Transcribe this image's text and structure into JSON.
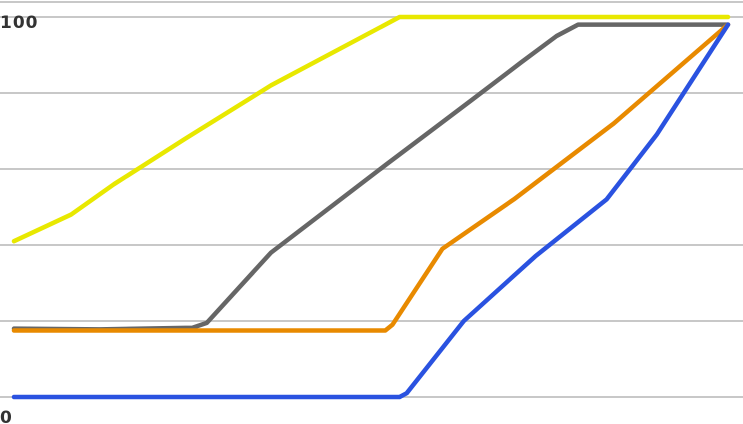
{
  "chart_data": {
    "type": "line",
    "title": "",
    "xlabel": "",
    "ylabel": "",
    "ylim": [
      0,
      100
    ],
    "xlim": [
      0,
      100
    ],
    "y_ticks": [
      0,
      20,
      40,
      60,
      80,
      100
    ],
    "y_tick_labels": [
      {
        "value": 0,
        "label": "0"
      },
      {
        "value": 100,
        "label": "100"
      }
    ],
    "grid": true,
    "legend": "none",
    "series": [
      {
        "color": "#e8e800",
        "x": [
          0,
          8,
          14,
          24,
          36,
          54,
          100
        ],
        "y": [
          41,
          48,
          56,
          68,
          82,
          100,
          100
        ]
      },
      {
        "color": "#666666",
        "x": [
          0,
          12,
          25,
          27,
          36,
          52,
          64,
          71,
          76,
          79,
          100
        ],
        "y": [
          18,
          17.8,
          18.2,
          19.5,
          38,
          61,
          78,
          88,
          95,
          98,
          98
        ]
      },
      {
        "color": "#e88a00",
        "x": [
          0,
          30,
          52,
          53,
          60,
          70,
          84,
          100
        ],
        "y": [
          17.5,
          17.5,
          17.5,
          19,
          39,
          52,
          72,
          98
        ]
      },
      {
        "color": "#2a52e0",
        "x": [
          0,
          30,
          54,
          55,
          63,
          73,
          83,
          90,
          100
        ],
        "y": [
          0,
          0,
          0,
          1,
          20,
          37,
          52,
          69,
          98
        ]
      }
    ]
  }
}
